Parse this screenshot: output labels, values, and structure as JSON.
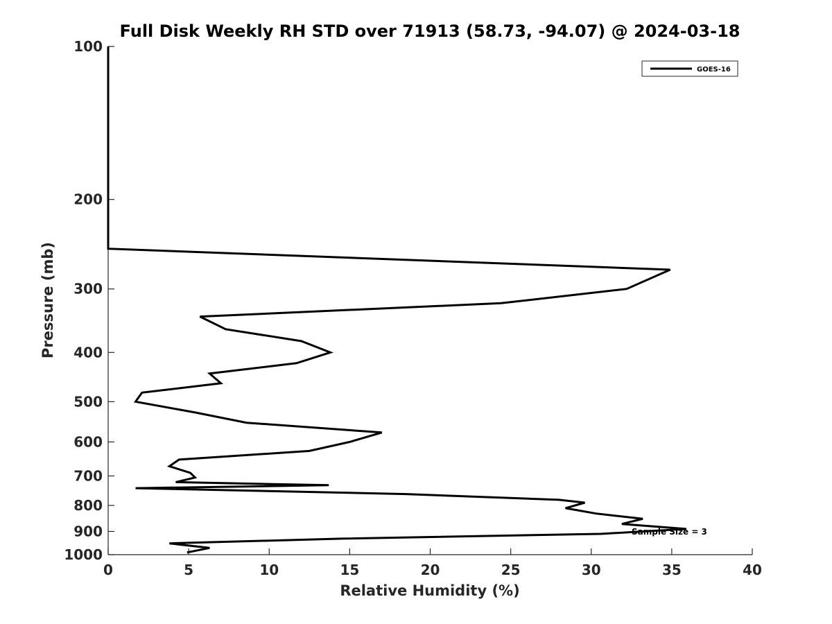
{
  "chart_data": {
    "type": "line",
    "title": "Full Disk Weekly RH STD over 71913 (58.73, -94.07) @ 2024-03-18",
    "xlabel": "Relative Humidity (%)",
    "ylabel": "Pressure (mb)",
    "xlim": [
      0,
      40
    ],
    "ylim": [
      100,
      1000
    ],
    "y_scale": "log",
    "y_reversed": true,
    "xticks": [
      0,
      5,
      10,
      15,
      20,
      25,
      30,
      35,
      40
    ],
    "yticks": [
      100,
      200,
      300,
      400,
      500,
      600,
      700,
      800,
      900,
      1000
    ],
    "grid": false,
    "legend_position": "top-right",
    "series": [
      {
        "name": "GOES-16",
        "color": "#000000",
        "x": [
          0,
          0,
          0,
          0,
          34.9,
          32.2,
          24.4,
          5.7,
          7.3,
          12.0,
          13.8,
          11.7,
          6.3,
          7.0,
          2.1,
          1.7,
          5.4,
          8.6,
          17.0,
          15.0,
          12.5,
          4.4,
          3.8,
          5.1,
          5.4,
          4.2,
          13.7,
          1.7,
          18.5,
          28.0,
          29.6,
          28.4,
          30.3,
          33.2,
          31.9,
          35.9,
          30.6,
          14.5,
          3.8,
          6.3,
          4.9
        ],
        "y": [
          100,
          150,
          200,
          250,
          275,
          300,
          320,
          340,
          360,
          380,
          400,
          420,
          440,
          460,
          480,
          500,
          525,
          550,
          575,
          600,
          625,
          650,
          670,
          690,
          705,
          720,
          730,
          740,
          760,
          780,
          790,
          810,
          830,
          850,
          870,
          890,
          910,
          930,
          950,
          970,
          990
        ]
      }
    ],
    "annotations": [
      {
        "text": "Sample Size = 3"
      }
    ]
  }
}
